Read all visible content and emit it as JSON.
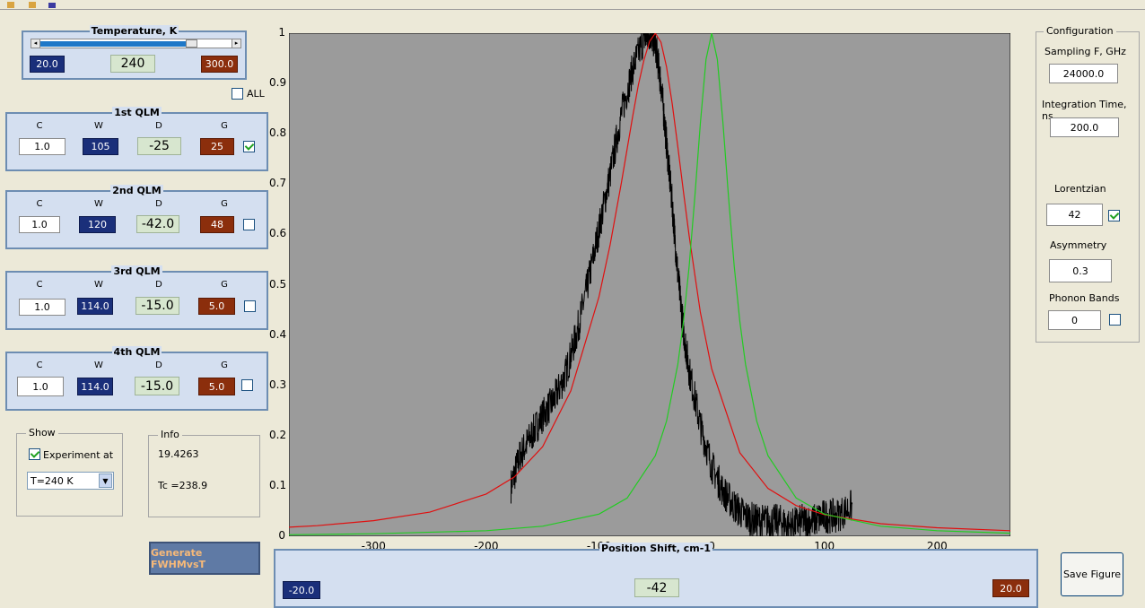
{
  "temperature": {
    "title": "Temperature, K",
    "min": "20.0",
    "value": "240",
    "max": "300.0",
    "level": 0.79
  },
  "all_label": "ALL",
  "qlm": [
    {
      "title": "1st QLM",
      "c_label": "C",
      "w_label": "W",
      "d_label": "D",
      "g_label": "G",
      "c": "1.0",
      "w": "105",
      "d": "-25",
      "g": "25",
      "checked": true
    },
    {
      "title": "2nd QLM",
      "c_label": "C",
      "w_label": "W",
      "d_label": "D",
      "g_label": "G",
      "c": "1.0",
      "w": "120",
      "d": "-42.0",
      "g": "48",
      "checked": false
    },
    {
      "title": "3rd QLM",
      "c_label": "C",
      "w_label": "W",
      "d_label": "D",
      "g_label": "G",
      "c": "1.0",
      "w": "114.0",
      "d": "-15.0",
      "g": "5.0",
      "checked": false
    },
    {
      "title": "4th QLM",
      "c_label": "C",
      "w_label": "W",
      "d_label": "D",
      "g_label": "G",
      "c": "1.0",
      "w": "114.0",
      "d": "-15.0",
      "g": "5.0",
      "checked": false
    }
  ],
  "show": {
    "title": "Show",
    "experiment_label": "Experiment at",
    "experiment_checked": true,
    "select_value": "T=240 K"
  },
  "info": {
    "title": "Info",
    "line1": "19.4263",
    "line2": "Tc =238.9"
  },
  "generate_button": "Generate FWHMvsT",
  "position_panel": {
    "min": "-20.0",
    "value": "-42",
    "max": "20.0"
  },
  "configuration": {
    "title": "Configuration",
    "sampling_label": "Sampling F, GHz",
    "sampling_value": "24000.0",
    "integration_label": "Integration Time, ns",
    "integration_value": "200.0",
    "lorentzian_label": "Lorentzian",
    "lorentzian_value": "42",
    "lorentzian_checked": true,
    "asymmetry_label": "Asymmetry",
    "asymmetry_value": "0.3",
    "phonon_label": "Phonon Bands",
    "phonon_value": "0",
    "phonon_checked": false
  },
  "save_button": "Save Figure",
  "chart_data": {
    "type": "line",
    "xlabel": "Position Shift, cm-1",
    "ylabel": "",
    "title": "",
    "xlim": [
      -375,
      265
    ],
    "ylim": [
      0,
      1
    ],
    "xticks": [
      "-300",
      "-200",
      "-100",
      "0",
      "100",
      "200"
    ],
    "xtick_values": [
      -300,
      -200,
      -100,
      0,
      100,
      200
    ],
    "yticks": [
      "0",
      "0.1",
      "0.2",
      "0.3",
      "0.4",
      "0.5",
      "0.6",
      "0.7",
      "0.8",
      "0.9",
      "1"
    ],
    "ytick_values": [
      0,
      0.1,
      0.2,
      0.3,
      0.4,
      0.5,
      0.6,
      0.7,
      0.8,
      0.9,
      1
    ],
    "grid": false,
    "background": "#9b9b9b",
    "series": [
      {
        "color": "#000000",
        "x": [
          -178,
          -170,
          -160,
          -150,
          -140,
          -130,
          -120,
          -110,
          -100,
          -90,
          -80,
          -70,
          -60,
          -55,
          -50,
          -45,
          -40,
          -35,
          -30,
          -25,
          -20,
          -10,
          0,
          10,
          20,
          30,
          40,
          50,
          60,
          70,
          80,
          90,
          100,
          110,
          125
        ],
        "y": [
          0.1,
          0.16,
          0.2,
          0.24,
          0.27,
          0.32,
          0.4,
          0.5,
          0.61,
          0.72,
          0.84,
          0.93,
          0.99,
          1.0,
          0.98,
          0.9,
          0.78,
          0.66,
          0.52,
          0.41,
          0.33,
          0.22,
          0.14,
          0.09,
          0.06,
          0.04,
          0.03,
          0.03,
          0.03,
          0.02,
          0.03,
          0.03,
          0.04,
          0.04,
          0.06
        ]
      },
      {
        "color": "#e01010",
        "x": [
          -375,
          -350,
          -300,
          -250,
          -200,
          -175,
          -150,
          -125,
          -100,
          -90,
          -80,
          -75,
          -70,
          -65,
          -60,
          -55,
          -50,
          -45,
          -40,
          -35,
          -30,
          -25,
          -20,
          -10,
          0,
          25,
          50,
          75,
          100,
          150,
          200,
          265
        ],
        "y": [
          0.018,
          0.021,
          0.031,
          0.048,
          0.084,
          0.118,
          0.178,
          0.289,
          0.476,
          0.58,
          0.704,
          0.77,
          0.836,
          0.897,
          0.947,
          0.984,
          1.0,
          0.982,
          0.933,
          0.86,
          0.774,
          0.684,
          0.597,
          0.445,
          0.333,
          0.166,
          0.095,
          0.061,
          0.043,
          0.025,
          0.017,
          0.011
        ]
      },
      {
        "color": "#22cc22",
        "x": [
          -375,
          -300,
          -200,
          -150,
          -100,
          -75,
          -50,
          -40,
          -30,
          -25,
          -20,
          -15,
          -10,
          -5,
          0,
          5,
          10,
          15,
          20,
          25,
          30,
          40,
          50,
          75,
          100,
          150,
          200,
          265
        ],
        "y": [
          0.003,
          0.005,
          0.011,
          0.02,
          0.044,
          0.076,
          0.16,
          0.229,
          0.342,
          0.427,
          0.537,
          0.674,
          0.821,
          0.948,
          1.0,
          0.948,
          0.821,
          0.674,
          0.537,
          0.427,
          0.342,
          0.229,
          0.16,
          0.076,
          0.044,
          0.02,
          0.011,
          0.006
        ]
      }
    ]
  }
}
